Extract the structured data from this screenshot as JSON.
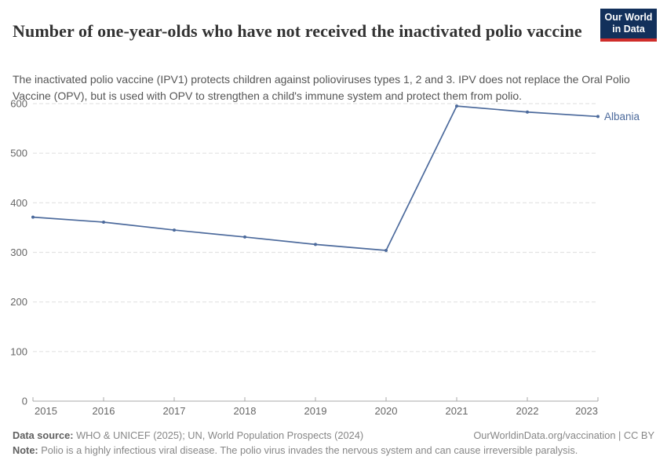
{
  "page": {
    "background": "#ffffff"
  },
  "header": {
    "title": "Number of one-year-olds who have not received the inactivated polio vaccine",
    "subtitle": "The inactivated polio vaccine (IPV1) protects children against polioviruses types 1, 2 and 3. IPV does not replace the Oral Polio Vaccine (OPV), but is used with OPV to strengthen a child's immune system and protect them from polio.",
    "logo": {
      "line1": "Our World",
      "line2": "in Data",
      "background_color": "#12305b",
      "accent_color": "#cf2d2a",
      "text_color": "#ffffff"
    }
  },
  "chart_data": {
    "type": "line",
    "title": "Number of one-year-olds who have not received the inactivated polio vaccine",
    "x": [
      2015,
      2016,
      2017,
      2018,
      2019,
      2020,
      2021,
      2022,
      2023
    ],
    "x_tick_labels": [
      "2015",
      "2016",
      "2017",
      "2018",
      "2019",
      "2020",
      "2021",
      "2022",
      "2023"
    ],
    "series": [
      {
        "name": "Albania",
        "color": "#4C6A9C",
        "values": [
          371,
          361,
          345,
          331,
          316,
          304,
          595,
          583,
          574
        ]
      }
    ],
    "ylim": [
      0,
      600
    ],
    "y_ticks": [
      0,
      100,
      200,
      300,
      400,
      500,
      600
    ],
    "grid": "horizontal-dashed",
    "legend": "line-end-label",
    "axis_color": "#a8a8a8",
    "gridline_color": "#e3e3e3",
    "tick_label_color": "#666666"
  },
  "footer": {
    "source_label": "Data source:",
    "source_text": "WHO & UNICEF (2025); UN, World Population Prospects (2024)",
    "credit": "OurWorldinData.org/vaccination | CC BY",
    "note_label": "Note:",
    "note_text": "Polio is a highly infectious viral disease. The polio virus invades the nervous system and can cause irreversible paralysis."
  }
}
